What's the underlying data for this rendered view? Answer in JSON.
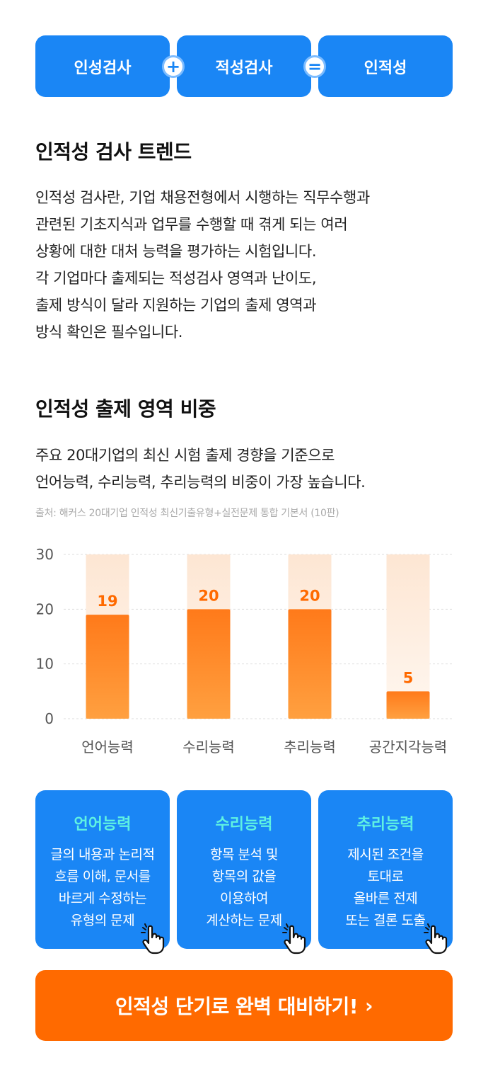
{
  "formula": {
    "item1": "인성검사",
    "op1": "+",
    "item2": "적성검사",
    "op2": "=",
    "result": "인적성"
  },
  "trend": {
    "title": "인적성 검사 트렌드",
    "lines": [
      "인적성 검사란, 기업 채용전형에서 시행하는 직무수행과",
      "관련된 기초지식과 업무를 수행할 때 겪게 되는 여러",
      "상황에 대한 대처 능력을 평가하는 시험입니다.",
      "각 기업마다 출제되는 적성검사 영역과 난이도,",
      "출제 방식이 달라 지원하는 기업의 출제 영역과",
      "방식 확인은 필수입니다."
    ]
  },
  "ratio": {
    "title": "인적성 출제 영역 비중",
    "lines": [
      "주요 20대기업의 최신 시험 출제 경향을 기준으로",
      "언어능력, 수리능력, 추리능력의 비중이 가장 높습니다."
    ],
    "source": "출처: 해커스 20대기업 인적성 최신기출유형+실전문제 통합 기본서 (10판)"
  },
  "chart_data": {
    "type": "bar",
    "categories": [
      "언어능력",
      "수리능력",
      "추리능력",
      "공간지각능력"
    ],
    "values": [
      19,
      20,
      20,
      5
    ],
    "ylim": [
      0,
      30
    ],
    "yticks": [
      0,
      10,
      20,
      30
    ],
    "grid": true,
    "colors": {
      "bar": "#ff7a1a",
      "bar_light": "#ffa040",
      "bg_bar": "#fde9da",
      "label": "#ff6a00"
    }
  },
  "cards": [
    {
      "title": "언어능력",
      "lines": [
        "글의 내용과 논리적",
        "흐름 이해, 문서를",
        "바르게 수정하는",
        "유형의 문제"
      ]
    },
    {
      "title": "수리능력",
      "lines": [
        "항목 분석 및",
        "항목의 값을",
        "이용하여",
        "계산하는 문제"
      ]
    },
    {
      "title": "추리능력",
      "lines": [
        "제시된 조건을",
        "토대로",
        "올바른 전제",
        "또는 결론 도출"
      ]
    }
  ],
  "cta": {
    "label": "인적성 단기로 완벽 대비하기!",
    "chevron": "›"
  },
  "colors": {
    "primary": "#1a86f5",
    "accent": "#ff6a00",
    "card_title": "#5ff2e2"
  }
}
